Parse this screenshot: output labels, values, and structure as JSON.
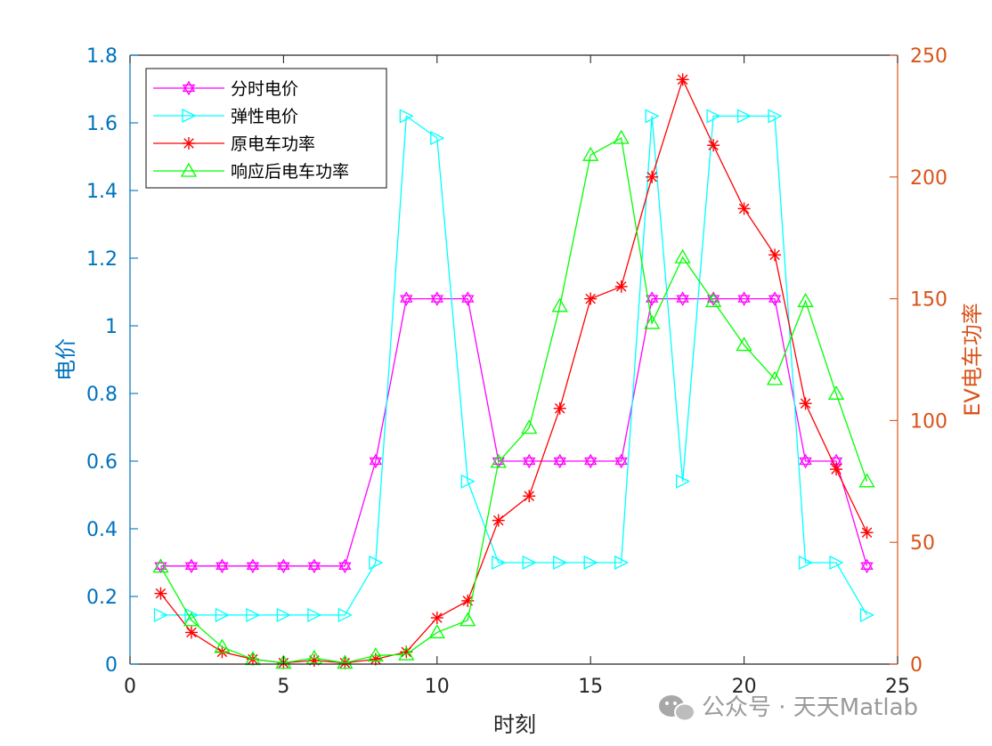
{
  "chart_data": {
    "type": "line",
    "xlabel": "时刻",
    "ylabel_left": "电价",
    "ylabel_right": "EV电车功率",
    "xlim": [
      0,
      25
    ],
    "ylim_left": [
      0,
      1.8
    ],
    "ylim_right": [
      0,
      250
    ],
    "x_ticks": [
      0,
      5,
      10,
      15,
      20,
      25
    ],
    "y_left_ticks": [
      "0",
      "0.2",
      "0.4",
      "0.6",
      "0.8",
      "1",
      "1.2",
      "1.4",
      "1.6",
      "1.8"
    ],
    "y_right_ticks": [
      "0",
      "50",
      "100",
      "150",
      "200",
      "250"
    ],
    "legend_position": "top-left",
    "x": [
      1,
      2,
      3,
      4,
      5,
      6,
      7,
      8,
      9,
      10,
      11,
      12,
      13,
      14,
      15,
      16,
      17,
      18,
      19,
      20,
      21,
      22,
      23,
      24
    ],
    "series": [
      {
        "name": "分时电价",
        "axis": "left",
        "color": "#FF00FF",
        "marker": "hexagram",
        "values": [
          0.29,
          0.29,
          0.29,
          0.29,
          0.29,
          0.29,
          0.29,
          0.6,
          1.08,
          1.08,
          1.08,
          0.6,
          0.6,
          0.6,
          0.6,
          0.6,
          1.08,
          1.08,
          1.08,
          1.08,
          1.08,
          0.6,
          0.6,
          0.29
        ]
      },
      {
        "name": "弹性电价",
        "axis": "left",
        "color": "#00FFFF",
        "marker": "triangle-right",
        "values": [
          0.145,
          0.145,
          0.145,
          0.145,
          0.145,
          0.145,
          0.145,
          0.3,
          1.62,
          1.555,
          0.54,
          0.3,
          0.3,
          0.3,
          0.3,
          0.3,
          1.62,
          0.54,
          1.62,
          1.62,
          1.62,
          0.3,
          0.3,
          0.145
        ]
      },
      {
        "name": "原电车功率",
        "axis": "right",
        "color": "#FF0000",
        "marker": "asterisk",
        "values": [
          29,
          13,
          5,
          2,
          0.5,
          1.5,
          0.5,
          2,
          5,
          19,
          26,
          59,
          69,
          105,
          150,
          155,
          200,
          240,
          213,
          187,
          168,
          107,
          80,
          54
        ]
      },
      {
        "name": "响应后电车功率",
        "axis": "right",
        "color": "#00FF00",
        "marker": "triangle-up",
        "values": [
          40,
          18,
          7,
          2,
          0.5,
          2.5,
          0.5,
          3.5,
          4,
          13,
          18,
          83,
          97,
          147,
          209,
          216,
          140,
          167,
          149,
          131,
          117,
          149,
          111,
          75
        ]
      }
    ]
  },
  "watermark": {
    "icon": "wechat-icon",
    "text": "公众号 · 天天Matlab"
  }
}
